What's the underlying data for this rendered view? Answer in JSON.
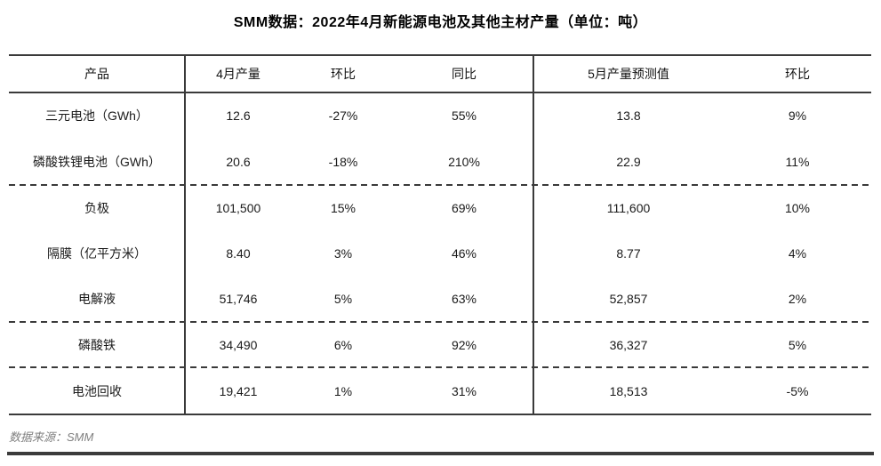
{
  "page_title": "SMM数据：2022年4月新能源电池及其他主材产量（单位：吨）",
  "footer": {
    "source_label": "数据来源：SMM"
  },
  "colors": {
    "line": "#3a3a3a",
    "text": "#1a1a1a",
    "source_text": "#808080",
    "bottom_rule": "#3b3b3b"
  },
  "chart_data": {
    "type": "table",
    "title": "SMM数据：2022年4月新能源电池及其他主材产量（单位：吨）",
    "columns": [
      "产品",
      "4月产量",
      "环比",
      "同比",
      "5月产量预测值",
      "环比"
    ],
    "rows": [
      [
        "三元电池（GWh）",
        "12.6",
        "-27%",
        "55%",
        "13.8",
        "9%"
      ],
      [
        "磷酸铁锂电池（GWh）",
        "20.6",
        "-18%",
        "210%",
        "22.9",
        "11%"
      ],
      [
        "负极",
        "101,500",
        "15%",
        "69%",
        "111,600",
        "10%"
      ],
      [
        "隔膜（亿平方米）",
        "8.40",
        "3%",
        "46%",
        "8.77",
        "4%"
      ],
      [
        "电解液",
        "51,746",
        "5%",
        "63%",
        "52,857",
        "2%"
      ],
      [
        "磷酸铁",
        "34,490",
        "6%",
        "92%",
        "36,327",
        "5%"
      ],
      [
        "电池回收",
        "19,421",
        "1%",
        "31%",
        "18,513",
        "-5%"
      ]
    ],
    "row_group_separators_after_rows": [
      2,
      5,
      6
    ],
    "source": "数据来源：SMM",
    "layout": "two sections split after 同比 column; solid outer rules, dashed group separators"
  }
}
